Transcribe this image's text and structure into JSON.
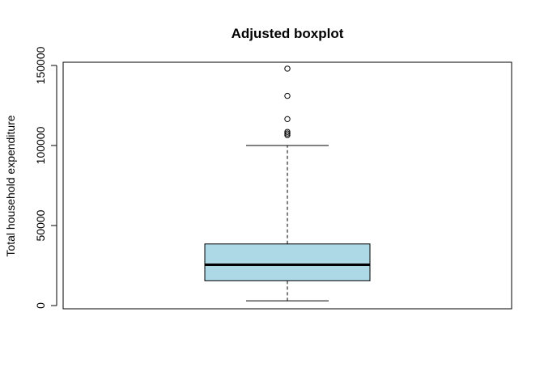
{
  "chart_data": {
    "type": "boxplot",
    "title": "Adjusted boxplot",
    "xlabel": "",
    "ylabel": "Total household expenditure",
    "ylim": [
      -2000,
      152000
    ],
    "y_ticks": [
      0,
      50000,
      100000,
      150000
    ],
    "y_tick_labels": [
      "0",
      "50000",
      "100000",
      "150000"
    ],
    "grid": false,
    "box": {
      "lower_whisker": 3000,
      "q1": 15500,
      "median": 25500,
      "q3": 38500,
      "upper_whisker": 100000,
      "fill": "#ADD8E6"
    },
    "outliers": [
      106500,
      107500,
      108500,
      116500,
      131000,
      148000
    ]
  }
}
